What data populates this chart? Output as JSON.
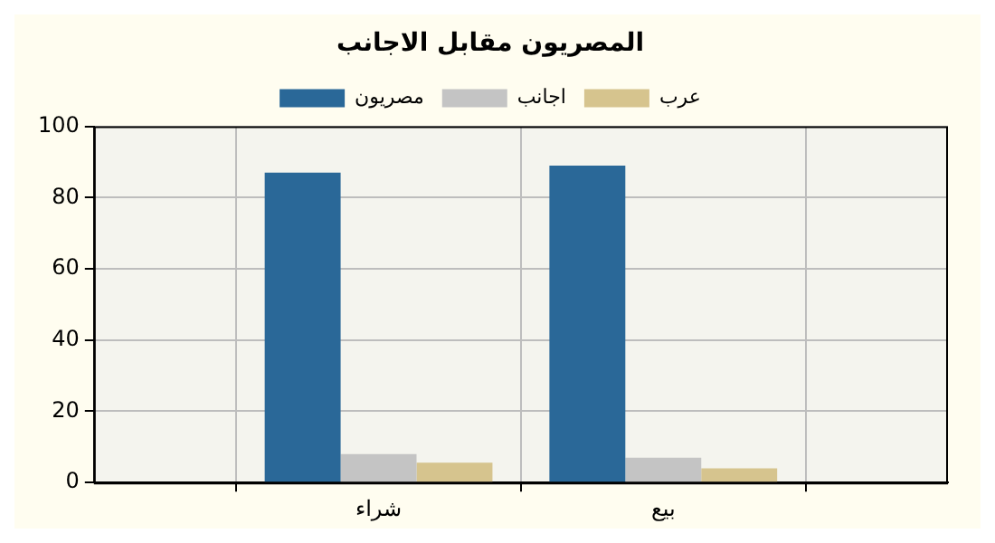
{
  "chart_data": {
    "type": "bar",
    "title": "المصريون مقابل الاجانب",
    "categories": [
      "شراء",
      "بيع"
    ],
    "series": [
      {
        "name": "مصريون",
        "color": "#2a6898",
        "values": [
          87,
          89
        ]
      },
      {
        "name": "اجانب",
        "color": "#c4c4c4",
        "values": [
          8,
          7
        ]
      },
      {
        "name": "عرب",
        "color": "#d6c48e",
        "values": [
          5.6,
          4
        ]
      }
    ],
    "ylim": [
      0,
      100
    ],
    "yticks": [
      0,
      20,
      40,
      60,
      80,
      100
    ],
    "grid": true,
    "legend": "top"
  }
}
